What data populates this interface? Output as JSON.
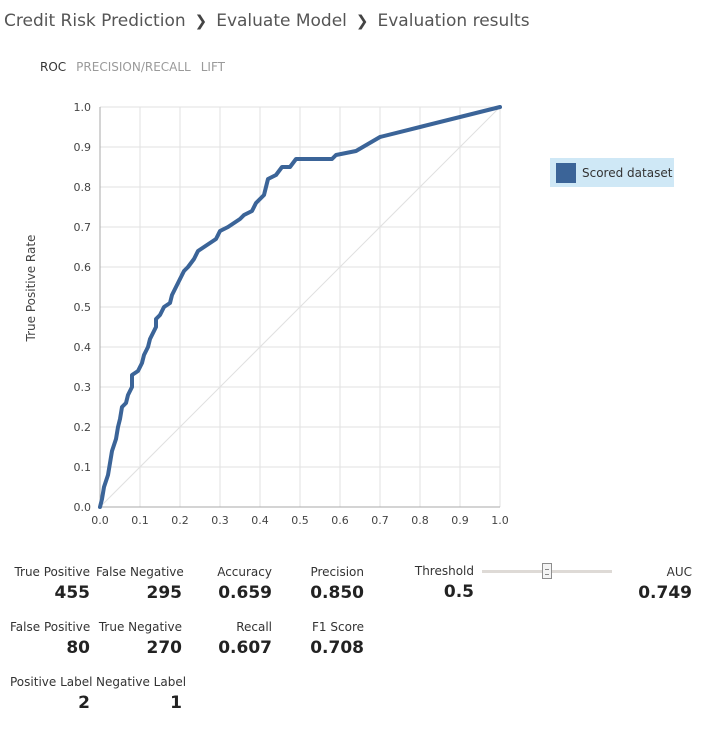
{
  "breadcrumb": [
    "Credit Risk Prediction",
    "Evaluate Model",
    "Evaluation results"
  ],
  "tabs": [
    {
      "label": "ROC",
      "active": true
    },
    {
      "label": "PRECISION/RECALL",
      "active": false
    },
    {
      "label": "LIFT",
      "active": false
    }
  ],
  "chart_data": {
    "type": "line",
    "ylabel": "True Positive Rate",
    "xlabel": "",
    "xlim": [
      0,
      1
    ],
    "ylim": [
      0,
      1
    ],
    "x_ticks": [
      "0.0",
      "0.1",
      "0.2",
      "0.3",
      "0.4",
      "0.5",
      "0.6",
      "0.7",
      "0.8",
      "0.9",
      "1.0"
    ],
    "y_ticks": [
      "0.0",
      "0.1",
      "0.2",
      "0.3",
      "0.4",
      "0.5",
      "0.6",
      "0.7",
      "0.8",
      "0.9",
      "1.0"
    ],
    "grid": true,
    "legend_position": "right",
    "series": [
      {
        "name": "Scored dataset",
        "color": "#3b6498",
        "points": [
          [
            0.0,
            0.0
          ],
          [
            0.005,
            0.02
          ],
          [
            0.01,
            0.05
          ],
          [
            0.02,
            0.08
          ],
          [
            0.025,
            0.11
          ],
          [
            0.03,
            0.14
          ],
          [
            0.04,
            0.17
          ],
          [
            0.045,
            0.2
          ],
          [
            0.05,
            0.22
          ],
          [
            0.055,
            0.25
          ],
          [
            0.065,
            0.26
          ],
          [
            0.07,
            0.28
          ],
          [
            0.08,
            0.3
          ],
          [
            0.08,
            0.33
          ],
          [
            0.095,
            0.34
          ],
          [
            0.105,
            0.36
          ],
          [
            0.11,
            0.38
          ],
          [
            0.12,
            0.4
          ],
          [
            0.125,
            0.42
          ],
          [
            0.13,
            0.43
          ],
          [
            0.14,
            0.45
          ],
          [
            0.14,
            0.47
          ],
          [
            0.15,
            0.48
          ],
          [
            0.16,
            0.5
          ],
          [
            0.175,
            0.51
          ],
          [
            0.18,
            0.53
          ],
          [
            0.19,
            0.55
          ],
          [
            0.2,
            0.57
          ],
          [
            0.21,
            0.59
          ],
          [
            0.22,
            0.6
          ],
          [
            0.235,
            0.62
          ],
          [
            0.245,
            0.64
          ],
          [
            0.26,
            0.65
          ],
          [
            0.275,
            0.66
          ],
          [
            0.29,
            0.67
          ],
          [
            0.3,
            0.69
          ],
          [
            0.32,
            0.7
          ],
          [
            0.335,
            0.71
          ],
          [
            0.35,
            0.72
          ],
          [
            0.36,
            0.73
          ],
          [
            0.38,
            0.74
          ],
          [
            0.39,
            0.76
          ],
          [
            0.41,
            0.78
          ],
          [
            0.415,
            0.8
          ],
          [
            0.42,
            0.82
          ],
          [
            0.44,
            0.83
          ],
          [
            0.455,
            0.85
          ],
          [
            0.475,
            0.85
          ],
          [
            0.49,
            0.87
          ],
          [
            0.58,
            0.87
          ],
          [
            0.59,
            0.88
          ],
          [
            0.64,
            0.89
          ],
          [
            0.7,
            0.925
          ],
          [
            0.8,
            0.95
          ],
          [
            0.9,
            0.975
          ],
          [
            1.0,
            1.0
          ]
        ]
      }
    ],
    "diagonal": [
      [
        0,
        0
      ],
      [
        1,
        1
      ]
    ]
  },
  "metrics": {
    "true_positive": {
      "label": "True Positive",
      "value": "455"
    },
    "false_negative": {
      "label": "False Negative",
      "value": "295"
    },
    "accuracy": {
      "label": "Accuracy",
      "value": "0.659"
    },
    "precision": {
      "label": "Precision",
      "value": "0.850"
    },
    "false_positive": {
      "label": "False Positive",
      "value": "80"
    },
    "true_negative": {
      "label": "True Negative",
      "value": "270"
    },
    "recall": {
      "label": "Recall",
      "value": "0.607"
    },
    "f1_score": {
      "label": "F1 Score",
      "value": "0.708"
    },
    "positive_label": {
      "label": "Positive Label",
      "value": "2"
    },
    "negative_label": {
      "label": "Negative Label",
      "value": "1"
    },
    "threshold": {
      "label": "Threshold",
      "value": "0.5"
    },
    "auc": {
      "label": "AUC",
      "value": "0.749"
    }
  },
  "threshold_slider": {
    "value": 0.5,
    "min": 0,
    "max": 1
  }
}
